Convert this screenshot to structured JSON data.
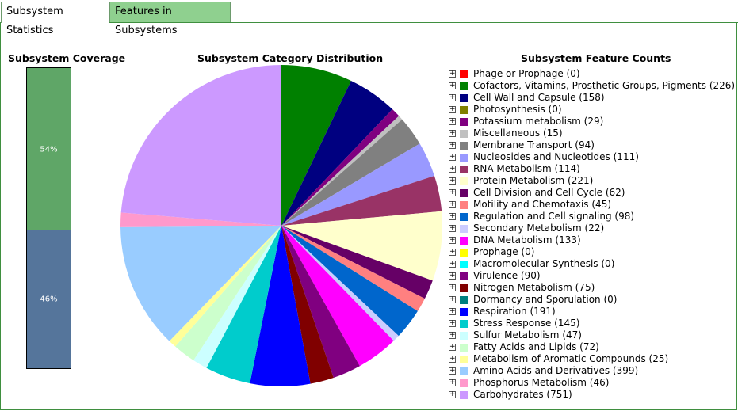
{
  "tabs": [
    {
      "label": "Subsystem Statistics",
      "active": true
    },
    {
      "label": "Features in Subsystems",
      "active": false
    }
  ],
  "coverage": {
    "title": "Subsystem Coverage",
    "covered": {
      "label": "54%",
      "fraction": 0.54,
      "color": "#5fa667"
    },
    "uncovered": {
      "label": "46%",
      "fraction": 0.46,
      "color": "#55759b"
    }
  },
  "pie_title": "Subsystem Category Distribution",
  "legend_title": "Subsystem Feature Counts",
  "expand_icon": "plus-square-icon",
  "chart_data": {
    "type": "pie",
    "title": "Subsystem Category Distribution",
    "legend_placement": "right",
    "slices": [
      {
        "label": "Phage or Prophage (0)",
        "name": "Phage or Prophage",
        "value": 0,
        "color": "#ff0000"
      },
      {
        "label": "Cofactors, Vitamins, Prosthetic Groups, Pigments (226)",
        "name": "Cofactors, Vitamins, Prosthetic Groups, Pigments",
        "value": 226,
        "color": "#008000"
      },
      {
        "label": "Cell Wall and Capsule (158)",
        "name": "Cell Wall and Capsule",
        "value": 158,
        "color": "#000080"
      },
      {
        "label": "Photosynthesis (0)",
        "name": "Photosynthesis",
        "value": 0,
        "color": "#808000"
      },
      {
        "label": "Potassium metabolism (29)",
        "name": "Potassium metabolism",
        "value": 29,
        "color": "#800080"
      },
      {
        "label": "Miscellaneous (15)",
        "name": "Miscellaneous",
        "value": 15,
        "color": "#c0c0c0"
      },
      {
        "label": "Membrane Transport (94)",
        "name": "Membrane Transport",
        "value": 94,
        "color": "#808080"
      },
      {
        "label": "Nucleosides and Nucleotides (111)",
        "name": "Nucleosides and Nucleotides",
        "value": 111,
        "color": "#9999ff"
      },
      {
        "label": "RNA Metabolism (114)",
        "name": "RNA Metabolism",
        "value": 114,
        "color": "#993366"
      },
      {
        "label": "Protein Metabolism (221)",
        "name": "Protein Metabolism",
        "value": 221,
        "color": "#ffffcc"
      },
      {
        "label": "Cell Division and Cell Cycle (62)",
        "name": "Cell Division and Cell Cycle",
        "value": 62,
        "color": "#660066"
      },
      {
        "label": "Motility and Chemotaxis (45)",
        "name": "Motility and Chemotaxis",
        "value": 45,
        "color": "#ff8080"
      },
      {
        "label": "Regulation and Cell signaling (98)",
        "name": "Regulation and Cell signaling",
        "value": 98,
        "color": "#0066cc"
      },
      {
        "label": "Secondary Metabolism (22)",
        "name": "Secondary Metabolism",
        "value": 22,
        "color": "#ccccff"
      },
      {
        "label": "DNA Metabolism (133)",
        "name": "DNA Metabolism",
        "value": 133,
        "color": "#ff00ff"
      },
      {
        "label": "Prophage (0)",
        "name": "Prophage",
        "value": 0,
        "color": "#ffff00"
      },
      {
        "label": "Macromolecular Synthesis (0)",
        "name": "Macromolecular Synthesis",
        "value": 0,
        "color": "#00ffff"
      },
      {
        "label": "Virulence (90)",
        "name": "Virulence",
        "value": 90,
        "color": "#800080"
      },
      {
        "label": "Nitrogen Metabolism (75)",
        "name": "Nitrogen Metabolism",
        "value": 75,
        "color": "#800000"
      },
      {
        "label": "Dormancy and Sporulation (0)",
        "name": "Dormancy and Sporulation",
        "value": 0,
        "color": "#008080"
      },
      {
        "label": "Respiration (191)",
        "name": "Respiration",
        "value": 191,
        "color": "#0000ff"
      },
      {
        "label": "Stress Response (145)",
        "name": "Stress Response",
        "value": 145,
        "color": "#00cccc"
      },
      {
        "label": "Sulfur Metabolism (47)",
        "name": "Sulfur Metabolism",
        "value": 47,
        "color": "#ccffff"
      },
      {
        "label": "Fatty Acids and Lipids (72)",
        "name": "Fatty Acids and Lipids",
        "value": 72,
        "color": "#ccffcc"
      },
      {
        "label": "Metabolism of Aromatic Compounds (25)",
        "name": "Metabolism of Aromatic Compounds",
        "value": 25,
        "color": "#ffff99"
      },
      {
        "label": "Amino Acids and Derivatives (399)",
        "name": "Amino Acids and Derivatives",
        "value": 399,
        "color": "#99ccff"
      },
      {
        "label": "Phosphorus Metabolism (46)",
        "name": "Phosphorus Metabolism",
        "value": 46,
        "color": "#ff99cc"
      },
      {
        "label": "Carbohydrates (751)",
        "name": "Carbohydrates",
        "value": 751,
        "color": "#cc99ff"
      }
    ]
  }
}
